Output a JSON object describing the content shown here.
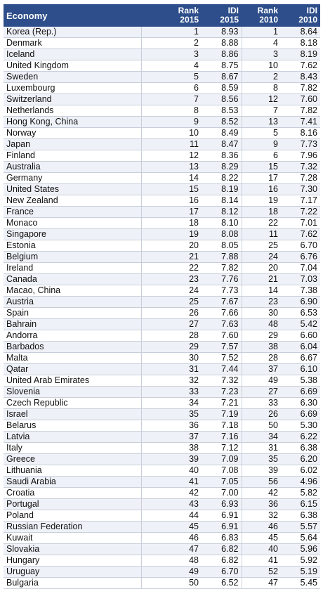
{
  "headers": {
    "economy": "Economy",
    "rank2015_line1": "Rank",
    "rank2015_line2": "2015",
    "idi2015_line1": "IDI",
    "idi2015_line2": "2015",
    "rank2010_line1": "Rank",
    "rank2010_line2": "2010",
    "idi2010_line1": "IDI",
    "idi2010_line2": "2010"
  },
  "colors": {
    "header_bg": "#2d4e8a",
    "header_text": "#ffffff",
    "stripe": "#eef1f7"
  },
  "rows": [
    [
      "Korea (Rep.)",
      "1",
      "8.93",
      "1",
      "8.64"
    ],
    [
      "Denmark",
      "2",
      "8.88",
      "4",
      "8.18"
    ],
    [
      "Iceland",
      "3",
      "8.86",
      "3",
      "8.19"
    ],
    [
      "United Kingdom",
      "4",
      "8.75",
      "10",
      "7.62"
    ],
    [
      "Sweden",
      "5",
      "8.67",
      "2",
      "8.43"
    ],
    [
      "Luxembourg",
      "6",
      "8.59",
      "8",
      "7.82"
    ],
    [
      "Switzerland",
      "7",
      "8.56",
      "12",
      "7.60"
    ],
    [
      "Netherlands",
      "8",
      "8.53",
      "7",
      "7.82"
    ],
    [
      "Hong Kong, China",
      "9",
      "8.52",
      "13",
      "7.41"
    ],
    [
      "Norway",
      "10",
      "8.49",
      "5",
      "8.16"
    ],
    [
      "Japan",
      "11",
      "8.47",
      "9",
      "7.73"
    ],
    [
      "Finland",
      "12",
      "8.36",
      "6",
      "7.96"
    ],
    [
      "Australia",
      "13",
      "8.29",
      "15",
      "7.32"
    ],
    [
      "Germany",
      "14",
      "8.22",
      "17",
      "7.28"
    ],
    [
      "United States",
      "15",
      "8.19",
      "16",
      "7.30"
    ],
    [
      "New Zealand",
      "16",
      "8.14",
      "19",
      "7.17"
    ],
    [
      "France",
      "17",
      "8.12",
      "18",
      "7.22"
    ],
    [
      "Monaco",
      "18",
      "8.10",
      "22",
      "7.01"
    ],
    [
      "Singapore",
      "19",
      "8.08",
      "11",
      "7.62"
    ],
    [
      "Estonia",
      "20",
      "8.05",
      "25",
      "6.70"
    ],
    [
      "Belgium",
      "21",
      "7.88",
      "24",
      "6.76"
    ],
    [
      "Ireland",
      "22",
      "7.82",
      "20",
      "7.04"
    ],
    [
      "Canada",
      "23",
      "7.76",
      "21",
      "7.03"
    ],
    [
      "Macao, China",
      "24",
      "7.73",
      "14",
      "7.38"
    ],
    [
      "Austria",
      "25",
      "7.67",
      "23",
      "6.90"
    ],
    [
      "Spain",
      "26",
      "7.66",
      "30",
      "6.53"
    ],
    [
      "Bahrain",
      "27",
      "7.63",
      "48",
      "5.42"
    ],
    [
      "Andorra",
      "28",
      "7.60",
      "29",
      "6.60"
    ],
    [
      "Barbados",
      "29",
      "7.57",
      "38",
      "6.04"
    ],
    [
      "Malta",
      "30",
      "7.52",
      "28",
      "6.67"
    ],
    [
      "Qatar",
      "31",
      "7.44",
      "37",
      "6.10"
    ],
    [
      "United Arab Emirates",
      "32",
      "7.32",
      "49",
      "5.38"
    ],
    [
      "Slovenia",
      "33",
      "7.23",
      "27",
      "6.69"
    ],
    [
      "Czech Republic",
      "34",
      "7.21",
      "33",
      "6.30"
    ],
    [
      "Israel",
      "35",
      "7.19",
      "26",
      "6.69"
    ],
    [
      "Belarus",
      "36",
      "7.18",
      "50",
      "5.30"
    ],
    [
      "Latvia",
      "37",
      "7.16",
      "34",
      "6.22"
    ],
    [
      "Italy",
      "38",
      "7.12",
      "31",
      "6.38"
    ],
    [
      "Greece",
      "39",
      "7.09",
      "35",
      "6.20"
    ],
    [
      "Lithuania",
      "40",
      "7.08",
      "39",
      "6.02"
    ],
    [
      "Saudi Arabia",
      "41",
      "7.05",
      "56",
      "4.96"
    ],
    [
      "Croatia",
      "42",
      "7.00",
      "42",
      "5.82"
    ],
    [
      "Portugal",
      "43",
      "6.93",
      "36",
      "6.15"
    ],
    [
      "Poland",
      "44",
      "6.91",
      "32",
      "6.38"
    ],
    [
      "Russian Federation",
      "45",
      "6.91",
      "46",
      "5.57"
    ],
    [
      "Kuwait",
      "46",
      "6.83",
      "45",
      "5.64"
    ],
    [
      "Slovakia",
      "47",
      "6.82",
      "40",
      "5.96"
    ],
    [
      "Hungary",
      "48",
      "6.82",
      "41",
      "5.92"
    ],
    [
      "Uruguay",
      "49",
      "6.70",
      "52",
      "5.19"
    ],
    [
      "Bulgaria",
      "50",
      "6.52",
      "47",
      "5.45"
    ]
  ]
}
